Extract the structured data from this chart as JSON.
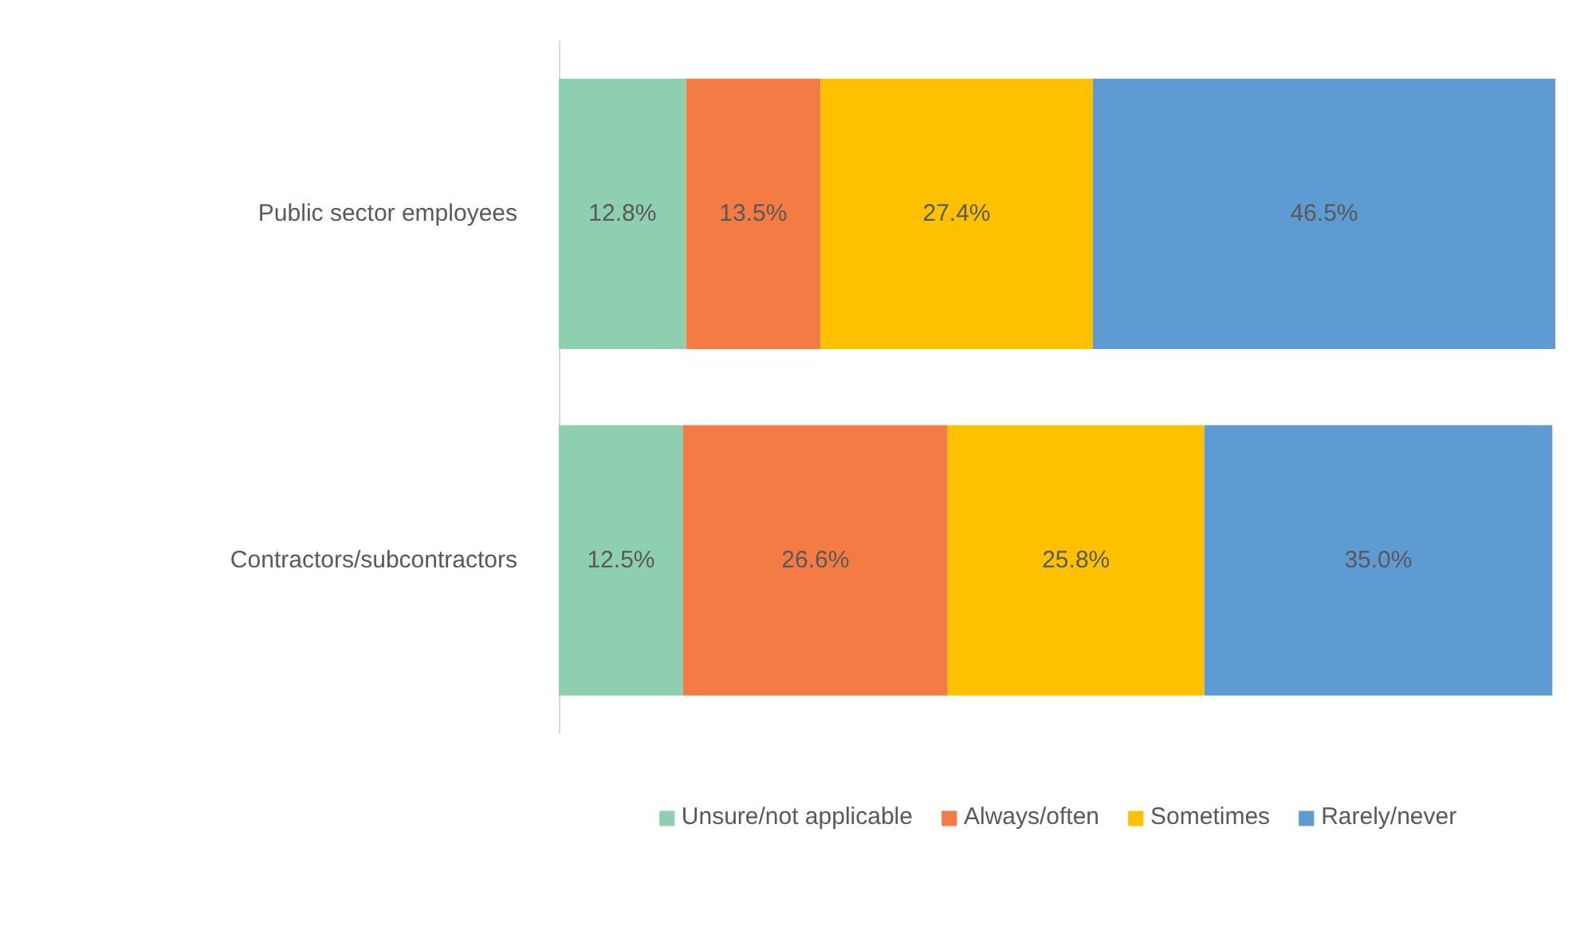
{
  "chart_data": {
    "type": "bar",
    "orientation": "horizontal",
    "stacked": true,
    "categories": [
      "Public sector employees",
      "Contractors/subcontractors"
    ],
    "series": [
      {
        "name": "Unsure/not applicable",
        "color": "#8ecfb0",
        "values": [
          12.8,
          12.5
        ],
        "value_labels": [
          "12.8%",
          "12.5%"
        ]
      },
      {
        "name": "Always/often",
        "color": "#f47b43",
        "values": [
          13.5,
          26.6
        ],
        "value_labels": [
          "13.5%",
          "26.6%"
        ]
      },
      {
        "name": "Sometimes",
        "color": "#ffc000",
        "values": [
          27.4,
          25.8
        ],
        "value_labels": [
          "27.4%",
          "25.8%"
        ]
      },
      {
        "name": "Rarely/never",
        "color": "#5f9bd3",
        "values": [
          46.5,
          35.0
        ],
        "value_labels": [
          "46.5%",
          "35.0%"
        ]
      }
    ],
    "legend": "bottom",
    "grid": false
  }
}
